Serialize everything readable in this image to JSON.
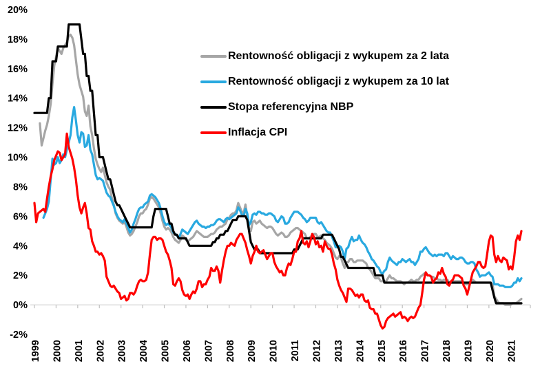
{
  "chart_data": {
    "type": "line",
    "title": "",
    "x_frequency": "monthly",
    "x_start": "1999-01",
    "x_end": "2021-07",
    "categories": [
      "1999",
      "2000",
      "2001",
      "2002",
      "2003",
      "2004",
      "2005",
      "2006",
      "2007",
      "2008",
      "2009",
      "2010",
      "2011",
      "2012",
      "2013",
      "2014",
      "2015",
      "2016",
      "2017",
      "2018",
      "2019",
      "2020",
      "2021"
    ],
    "yticks": [
      20,
      18,
      16,
      14,
      12,
      10,
      8,
      6,
      4,
      2,
      0,
      -2
    ],
    "y_tick_labels": [
      "20%",
      "18%",
      "16%",
      "14%",
      "12%",
      "10%",
      "8%",
      "6%",
      "4%",
      "2%",
      "0%",
      "-2%"
    ],
    "ylim": [
      -2,
      20
    ],
    "grid": false,
    "legend_position": "inside-top-center",
    "axis_color": "#D9D9D9",
    "tick_color": "#BFBFBF",
    "series": [
      {
        "name": "Rentowność obligacji z wykupem za 2 lata",
        "slug": "bond-2y",
        "color": "#A6A6A6",
        "values": [
          null,
          null,
          null,
          12.3,
          10.8,
          11.3,
          11.8,
          12.2,
          12.8,
          13.6,
          15.0,
          16.2,
          16.8,
          17.4,
          17.2,
          17.0,
          17.4,
          17.6,
          17.8,
          18.2,
          18.3,
          18.1,
          17.6,
          16.6,
          15.6,
          14.9,
          14.5,
          14.1,
          13.1,
          12.8,
          13.5,
          12.1,
          11.5,
          10.6,
          9.9,
          9.5,
          9.2,
          9.0,
          9.3,
          8.8,
          8.3,
          8.0,
          7.8,
          7.2,
          6.8,
          6.2,
          5.9,
          5.7,
          5.6,
          5.5,
          5.6,
          5.3,
          4.9,
          4.7,
          4.8,
          5.0,
          5.3,
          5.6,
          6.0,
          6.2,
          6.2,
          6.4,
          6.5,
          6.8,
          7.2,
          7.3,
          7.2,
          7.0,
          6.8,
          6.6,
          6.2,
          5.7,
          5.3,
          5.1,
          5.2,
          5.1,
          4.9,
          4.6,
          4.4,
          4.3,
          4.2,
          4.4,
          4.7,
          4.6,
          4.4,
          4.3,
          4.4,
          4.5,
          4.6,
          4.8,
          5.0,
          4.9,
          4.8,
          4.7,
          4.6,
          4.6,
          4.6,
          4.7,
          4.8,
          4.8,
          4.9,
          5.1,
          5.2,
          5.3,
          5.3,
          5.4,
          5.5,
          5.8,
          5.9,
          6.1,
          6.2,
          6.2,
          6.4,
          6.9,
          6.6,
          6.3,
          6.2,
          6.8,
          6.0,
          5.2,
          5.0,
          5.6,
          5.7,
          5.5,
          5.6,
          5.7,
          5.5,
          5.4,
          5.3,
          5.2,
          5.3,
          5.3,
          5.2,
          5.0,
          4.8,
          4.7,
          4.8,
          4.9,
          4.8,
          4.6,
          4.6,
          4.7,
          4.9,
          5.0,
          5.1,
          5.2,
          5.2,
          5.1,
          5.0,
          4.9,
          4.8,
          4.5,
          4.5,
          4.6,
          4.7,
          4.8,
          4.8,
          4.6,
          4.6,
          4.7,
          4.5,
          4.4,
          4.2,
          4.1,
          4.0,
          3.8,
          3.5,
          3.2,
          3.1,
          3.3,
          3.2,
          2.8,
          2.5,
          2.9,
          2.9,
          3.1,
          3.1,
          2.9,
          2.9,
          3.0,
          3.0,
          3.0,
          3.0,
          2.9,
          2.8,
          2.5,
          2.4,
          2.2,
          2.0,
          1.8,
          1.8,
          1.8,
          1.6,
          1.6,
          1.6,
          1.6,
          1.8,
          2.0,
          1.8,
          1.8,
          1.7,
          1.6,
          1.6,
          1.6,
          1.5,
          1.4,
          1.5,
          1.5,
          1.6,
          1.7,
          1.6,
          1.6,
          1.7,
          1.7,
          1.9,
          2.0,
          2.1,
          2.2,
          2.0,
          2.0,
          1.9,
          1.9,
          1.8,
          1.8,
          1.7,
          1.7,
          1.6,
          1.7,
          1.7,
          1.7,
          1.5,
          1.5,
          1.6,
          1.6,
          1.6,
          1.6,
          1.6,
          1.6,
          1.5,
          1.4,
          1.4,
          1.5,
          1.6,
          1.7,
          1.6,
          1.5,
          1.5,
          1.5,
          1.5,
          1.5,
          1.5,
          1.5,
          1.5,
          1.5,
          1.4,
          0.6,
          0.4,
          0.2,
          0.1,
          0.1,
          0.1,
          0.0,
          0.0,
          0.0,
          0.0,
          0.1,
          0.1,
          0.1,
          0.2,
          0.3,
          0.4
        ]
      },
      {
        "name": "Rentowność obligacji z wykupem za 10 lat",
        "slug": "bond-10y",
        "color": "#29A9E0",
        "values": [
          null,
          null,
          null,
          null,
          null,
          5.9,
          6.2,
          6.5,
          7.0,
          8.5,
          9.9,
          9.5,
          9.6,
          10.0,
          9.6,
          9.8,
          10.2,
          10.0,
          10.5,
          11.0,
          11.5,
          12.7,
          13.4,
          12.5,
          11.5,
          11.0,
          11.7,
          11.6,
          10.7,
          10.8,
          11.5,
          10.5,
          10.2,
          9.5,
          8.8,
          8.5,
          8.6,
          8.5,
          8.4,
          8.0,
          7.6,
          7.4,
          7.3,
          7.0,
          6.7,
          6.3,
          6.0,
          5.8,
          5.7,
          5.6,
          5.8,
          5.5,
          5.2,
          4.9,
          5.1,
          5.5,
          5.8,
          6.2,
          6.5,
          6.6,
          6.6,
          6.8,
          6.9,
          7.0,
          7.4,
          7.5,
          7.4,
          7.3,
          7.1,
          6.9,
          6.5,
          6.0,
          5.6,
          5.4,
          5.5,
          5.4,
          5.2,
          4.9,
          4.8,
          4.7,
          4.5,
          4.8,
          5.1,
          5.0,
          4.9,
          4.8,
          5.0,
          5.2,
          5.4,
          5.6,
          5.7,
          5.5,
          5.4,
          5.3,
          5.3,
          5.2,
          5.3,
          5.3,
          5.4,
          5.4,
          5.5,
          5.7,
          5.8,
          5.8,
          5.7,
          5.6,
          5.8,
          5.9,
          5.8,
          5.9,
          6.0,
          6.1,
          6.2,
          6.6,
          6.4,
          6.1,
          6.0,
          6.5,
          6.2,
          5.4,
          5.6,
          6.1,
          6.2,
          6.1,
          6.3,
          6.3,
          6.2,
          6.2,
          6.1,
          6.1,
          6.2,
          6.2,
          6.1,
          6.0,
          5.7,
          5.6,
          5.8,
          6.0,
          5.9,
          5.5,
          5.5,
          5.6,
          5.9,
          6.1,
          6.3,
          6.3,
          6.3,
          6.2,
          6.1,
          5.9,
          5.8,
          5.6,
          5.7,
          5.9,
          5.9,
          5.9,
          5.9,
          5.6,
          5.5,
          5.6,
          5.4,
          5.2,
          5.0,
          4.9,
          4.9,
          4.6,
          4.3,
          3.9,
          3.9,
          4.0,
          3.9,
          3.6,
          3.1,
          3.8,
          3.9,
          4.3,
          4.6,
          4.3,
          4.4,
          4.4,
          4.7,
          4.4,
          4.2,
          4.1,
          3.9,
          3.6,
          3.4,
          3.1,
          3.0,
          2.8,
          2.6,
          2.5,
          2.2,
          2.1,
          2.3,
          2.4,
          2.9,
          3.2,
          3.0,
          2.9,
          2.8,
          2.7,
          2.9,
          2.9,
          3.1,
          3.0,
          2.9,
          3.0,
          3.1,
          2.9,
          2.9,
          2.7,
          2.9,
          3.1,
          3.6,
          3.6,
          3.8,
          3.9,
          3.7,
          3.5,
          3.4,
          3.3,
          3.4,
          3.3,
          3.4,
          3.4,
          3.4,
          3.3,
          3.5,
          3.5,
          3.3,
          3.1,
          3.3,
          3.2,
          3.1,
          3.1,
          3.2,
          3.2,
          3.1,
          2.9,
          2.8,
          2.8,
          2.9,
          2.9,
          2.8,
          2.4,
          2.2,
          1.9,
          2.0,
          2.0,
          2.0,
          2.1,
          2.2,
          2.0,
          1.9,
          1.4,
          1.4,
          1.4,
          1.3,
          1.3,
          1.3,
          1.2,
          1.2,
          1.2,
          1.2,
          1.3,
          1.5,
          1.5,
          1.8,
          1.6,
          1.8
        ]
      },
      {
        "name": "Stopa referencyjna NBP",
        "slug": "nbp-reference-rate",
        "color": "#000000",
        "values": [
          13,
          13,
          13,
          13,
          13,
          13,
          13,
          13,
          14,
          14,
          16.5,
          16.5,
          16.5,
          17.5,
          17.5,
          17.5,
          17.5,
          17.5,
          17.5,
          19,
          19,
          19,
          19,
          19,
          19,
          19,
          18,
          17,
          17,
          15.5,
          15.5,
          14.5,
          14.5,
          13,
          11.5,
          11.5,
          10,
          10,
          10,
          9.5,
          9,
          8.5,
          8.5,
          8,
          7.5,
          7,
          6.75,
          6.75,
          6.5,
          6.25,
          6,
          5.75,
          5.5,
          5.25,
          5.25,
          5.25,
          5.25,
          5.25,
          5.25,
          5.25,
          5.25,
          5.25,
          5.25,
          5.25,
          5.25,
          5.25,
          6,
          6.5,
          6.5,
          6.5,
          6.5,
          6.5,
          6.5,
          6.5,
          6,
          5.5,
          5.5,
          5,
          4.75,
          4.75,
          4.5,
          4.5,
          4.5,
          4.5,
          4.5,
          4.25,
          4,
          4,
          4,
          4,
          4,
          4,
          4,
          4,
          4,
          4,
          4,
          4,
          4,
          4.25,
          4.25,
          4.5,
          4.5,
          4.75,
          4.75,
          4.75,
          5,
          5,
          5.25,
          5.5,
          5.75,
          5.75,
          5.75,
          6,
          6,
          6,
          6,
          6,
          5.75,
          5,
          4.25,
          4,
          3.75,
          3.75,
          3.75,
          3.5,
          3.5,
          3.5,
          3.5,
          3.5,
          3.5,
          3.5,
          3.5,
          3.5,
          3.5,
          3.5,
          3.5,
          3.5,
          3.5,
          3.5,
          3.5,
          3.5,
          3.5,
          3.5,
          3.75,
          3.75,
          3.75,
          4,
          4.25,
          4.5,
          4.5,
          4.5,
          4.5,
          4.5,
          4.5,
          4.5,
          4.5,
          4.5,
          4.5,
          4.5,
          4.75,
          4.75,
          4.75,
          4.75,
          4.75,
          4.75,
          4.5,
          4.25,
          4,
          3.75,
          3.25,
          3.25,
          3,
          2.75,
          2.5,
          2.5,
          2.5,
          2.5,
          2.5,
          2.5,
          2.5,
          2.5,
          2.5,
          2.5,
          2.5,
          2.5,
          2.5,
          2.5,
          2.5,
          2,
          2,
          2,
          2,
          2,
          1.5,
          1.5,
          1.5,
          1.5,
          1.5,
          1.5,
          1.5,
          1.5,
          1.5,
          1.5,
          1.5,
          1.5,
          1.5,
          1.5,
          1.5,
          1.5,
          1.5,
          1.5,
          1.5,
          1.5,
          1.5,
          1.5,
          1.5,
          1.5,
          1.5,
          1.5,
          1.5,
          1.5,
          1.5,
          1.5,
          1.5,
          1.5,
          1.5,
          1.5,
          1.5,
          1.5,
          1.5,
          1.5,
          1.5,
          1.5,
          1.5,
          1.5,
          1.5,
          1.5,
          1.5,
          1.5,
          1.5,
          1.5,
          1.5,
          1.5,
          1.5,
          1.5,
          1.5,
          1.5,
          1.5,
          1.5,
          1.5,
          1.5,
          1.5,
          1.5,
          1,
          0.5,
          0.1,
          0.1,
          0.1,
          0.1,
          0.1,
          0.1,
          0.1,
          0.1,
          0.1,
          0.1,
          0.1,
          0.1,
          0.1,
          0.1,
          0.1
        ]
      },
      {
        "name": "Inflacja CPI",
        "slug": "cpi-inflation",
        "color": "#FF0000",
        "values": [
          6.9,
          5.6,
          6.2,
          6.3,
          6.4,
          6.5,
          6.3,
          7.2,
          8.0,
          8.7,
          9.2,
          9.8,
          10.1,
          10.4,
          10.3,
          9.8,
          10.0,
          10.2,
          11.6,
          10.7,
          10.3,
          9.9,
          9.3,
          8.5,
          7.4,
          6.6,
          6.2,
          6.6,
          6.9,
          6.2,
          5.2,
          5.1,
          4.3,
          4.0,
          3.6,
          3.6,
          3.4,
          3.5,
          3.3,
          3.0,
          1.9,
          1.6,
          1.3,
          1.2,
          1.3,
          1.1,
          0.9,
          0.8,
          0.4,
          0.5,
          0.6,
          0.3,
          0.4,
          0.8,
          0.8,
          0.7,
          0.9,
          1.3,
          1.6,
          1.7,
          1.6,
          1.6,
          1.7,
          2.2,
          3.4,
          4.4,
          4.6,
          4.6,
          4.4,
          4.5,
          4.5,
          4.4,
          4.0,
          3.6,
          3.4,
          3.0,
          2.5,
          1.4,
          1.3,
          1.6,
          1.8,
          1.6,
          1.0,
          0.7,
          0.6,
          0.7,
          0.4,
          0.7,
          0.9,
          0.8,
          1.1,
          1.6,
          1.6,
          1.2,
          1.4,
          1.4,
          1.7,
          1.9,
          2.5,
          2.3,
          2.3,
          2.6,
          2.3,
          1.5,
          2.3,
          3.0,
          3.6,
          4.0,
          4.0,
          4.2,
          4.1,
          4.0,
          4.4,
          4.6,
          4.8,
          4.8,
          4.5,
          4.2,
          3.7,
          3.3,
          2.8,
          3.3,
          3.6,
          4.0,
          3.6,
          3.5,
          3.6,
          3.7,
          3.4,
          3.1,
          3.3,
          3.5,
          3.5,
          2.9,
          2.6,
          2.4,
          2.2,
          2.3,
          2.0,
          2.0,
          2.5,
          2.8,
          2.7,
          3.1,
          3.6,
          3.6,
          4.3,
          4.5,
          5.0,
          4.2,
          4.1,
          4.3,
          3.9,
          4.3,
          4.8,
          4.6,
          4.1,
          4.3,
          3.9,
          4.0,
          3.6,
          4.3,
          4.0,
          3.8,
          3.8,
          3.4,
          2.8,
          2.4,
          1.7,
          1.3,
          1.0,
          0.8,
          0.5,
          0.2,
          1.1,
          1.1,
          1.0,
          0.8,
          0.6,
          0.7,
          0.5,
          0.7,
          0.7,
          0.3,
          0.2,
          0.3,
          -0.2,
          -0.3,
          -0.3,
          -0.6,
          -0.6,
          -1.0,
          -1.4,
          -1.6,
          -1.5,
          -1.1,
          -0.9,
          -0.8,
          -0.7,
          -0.6,
          -0.8,
          -0.7,
          -0.6,
          -0.5,
          -0.9,
          -0.8,
          -0.9,
          -1.1,
          -0.9,
          -0.8,
          -0.9,
          -0.8,
          -0.5,
          -0.2,
          0.0,
          0.8,
          1.7,
          2.2,
          2.0,
          2.0,
          1.9,
          1.5,
          1.7,
          1.8,
          2.2,
          2.1,
          2.5,
          2.1,
          1.9,
          1.4,
          1.3,
          1.6,
          1.7,
          2.0,
          2.0,
          2.0,
          1.9,
          1.8,
          1.3,
          1.1,
          0.7,
          1.2,
          1.7,
          2.2,
          2.4,
          2.6,
          2.9,
          2.9,
          2.6,
          2.5,
          2.6,
          3.4,
          4.3,
          4.7,
          4.6,
          3.4,
          2.9,
          3.3,
          3.0,
          2.9,
          3.2,
          3.1,
          3.0,
          2.4,
          2.6,
          2.4,
          3.2,
          4.3,
          4.7,
          4.4,
          5.0
        ]
      }
    ]
  }
}
